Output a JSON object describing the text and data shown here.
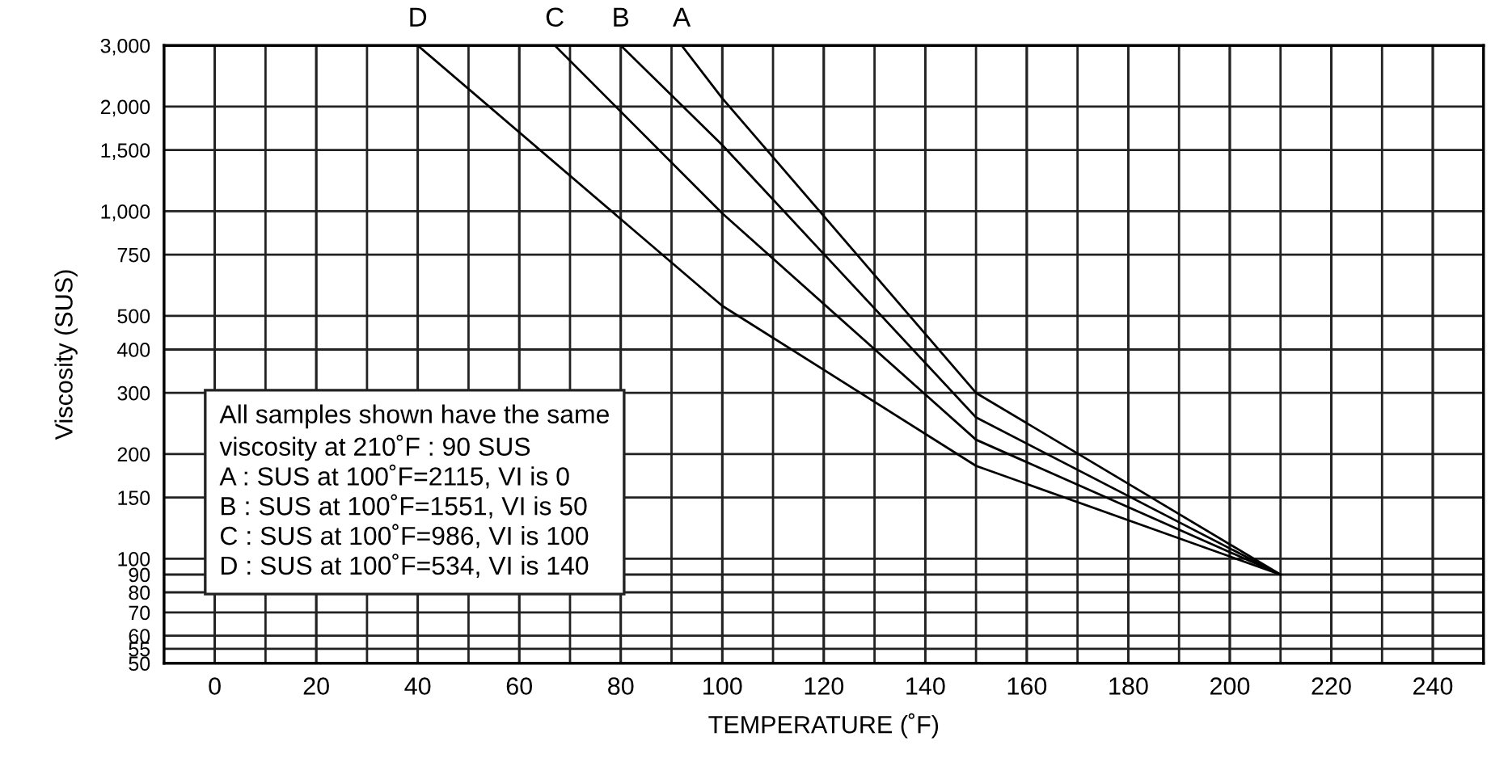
{
  "chart_data": {
    "type": "line",
    "xlabel": "TEMPERATURE (˚F)",
    "ylabel": "Viscosity (SUS)",
    "series": [
      {
        "color": "#000000",
        "x": [
          92,
          100,
          150,
          210
        ],
        "values": [
          3000,
          2115,
          300,
          90
        ]
      },
      {
        "color": "#000000",
        "x": [
          80,
          100,
          150,
          210
        ],
        "values": [
          3000,
          1551,
          255,
          90
        ]
      },
      {
        "color": "#000000",
        "x": [
          67,
          100,
          150,
          210
        ],
        "values": [
          3000,
          986,
          220,
          90
        ]
      },
      {
        "color": "#000000",
        "x": [
          40,
          100,
          150,
          210
        ],
        "values": [
          3000,
          534,
          185,
          90
        ]
      }
    ],
    "annotations": [
      {
        "text": "A",
        "x": 92,
        "y": 3000
      },
      {
        "text": "B",
        "x": 80,
        "y": 3000
      },
      {
        "text": "C",
        "x": 67,
        "y": 3000
      },
      {
        "text": "D",
        "x": 40,
        "y": 3000
      },
      "All samples shown have the same\nviscosity at 210˚F : 90 SUS\nA : SUS at 100˚F=2115, VI is 0\nB : SUS at 100˚F=1551, VI is 50\nC : SUS at 100˚F=986, VI is 100\nD : SUS at 100˚F=534, VI is 140"
    ],
    "log": true,
    "grid": true,
    "marker": "none",
    "line_style": "solid",
    "legend": false,
    "xlim": [
      -10,
      250
    ],
    "xticks": [
      0,
      20,
      40,
      60,
      80,
      100,
      120,
      140,
      160,
      180,
      200,
      220,
      240
    ],
    "ylim": [
      50,
      3000
    ],
    "yticks": [
      50,
      55,
      60,
      70,
      80,
      90,
      100,
      150,
      200,
      300,
      400,
      500,
      750,
      {
        "value": 1000,
        "label": "1,000"
      },
      {
        "value": 1500,
        "label": "1,500"
      },
      {
        "value": 2000,
        "label": "2,000"
      },
      {
        "value": 3000,
        "label": "3,000"
      }
    ]
  }
}
